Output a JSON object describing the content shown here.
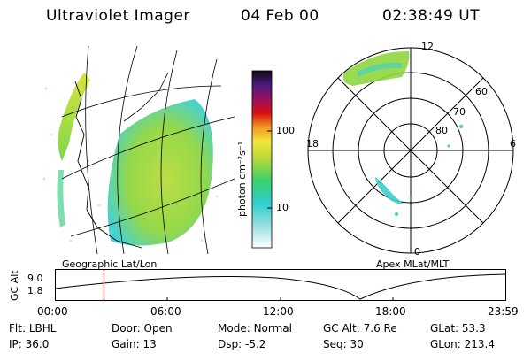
{
  "header": {
    "instrument": "Ultraviolet Imager",
    "date": "04 Feb 00",
    "time": "02:38:49 UT"
  },
  "colorbar": {
    "label": "photon cm⁻²s⁻¹",
    "ticks": [
      "100",
      "10"
    ]
  },
  "left_panel": {
    "caption": "Geographic Lat/Lon"
  },
  "right_panel": {
    "caption": "Apex MLat/MLT",
    "mlt_labels": {
      "top": "12",
      "left": "18",
      "right": "6",
      "bottom": "0"
    },
    "lat_labels": [
      "60",
      "70",
      "80"
    ]
  },
  "altitude_plot": {
    "ylabel": "GC Alt",
    "yticks": [
      "9.0",
      "1.8"
    ],
    "xticks": [
      "00:00",
      "06:00",
      "12:00",
      "18:00",
      "23:59"
    ],
    "current_time_fraction": 0.109
  },
  "info": {
    "row1": [
      {
        "label": "Flt:",
        "value": "LBHL"
      },
      {
        "label": "Door:",
        "value": "Open"
      },
      {
        "label": "Mode:",
        "value": "Normal"
      },
      {
        "label": "GC Alt:",
        "value": "7.6 Re"
      },
      {
        "label": "GLat:",
        "value": "53.3"
      }
    ],
    "row2": [
      {
        "label": "IP:",
        "value": "36.0"
      },
      {
        "label": "Gain:",
        "value": "13"
      },
      {
        "label": "Dsp:",
        "value": "-5.2"
      },
      {
        "label": "Seq:",
        "value": "30"
      },
      {
        "label": "GLon:",
        "value": "213.4"
      }
    ]
  },
  "colors": {
    "aurora_green": "#8fd640",
    "aurora_cyan": "#3ccfcf",
    "aurora_yellow": "#c8e040",
    "time_marker": "#cc0000"
  }
}
